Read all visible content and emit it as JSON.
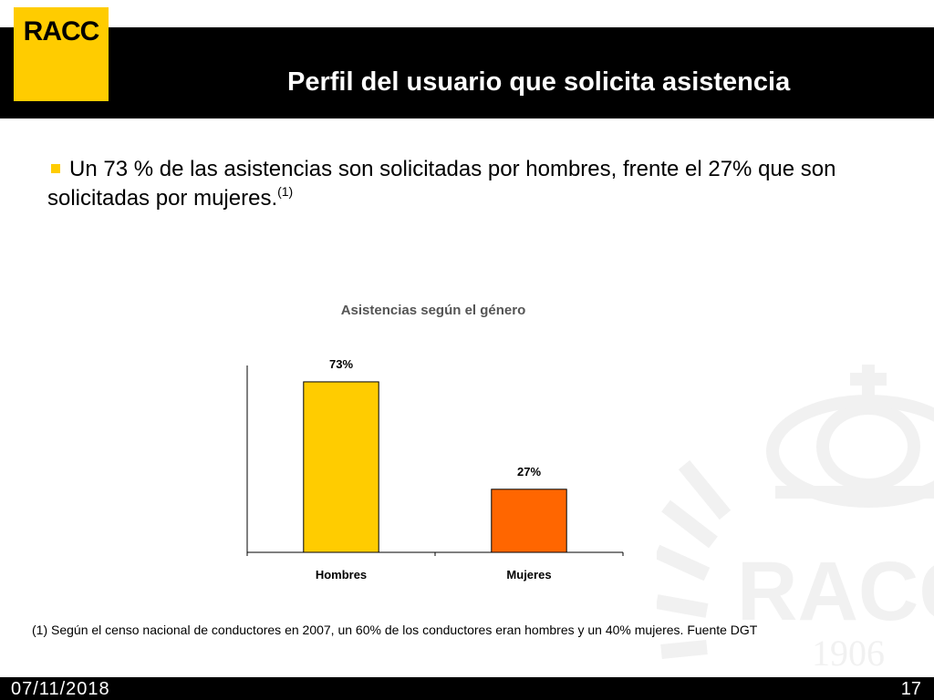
{
  "logo": {
    "text": "RACC"
  },
  "slide": {
    "title": "Perfil del usuario que solicita asistencia",
    "bullet_text": "Un 73 % de las asistencias son solicitadas por hombres, frente el 27% que son solicitadas por mujeres.",
    "bullet_sup": "(1)"
  },
  "chart_data": {
    "type": "bar",
    "title": "Asistencias según el género",
    "categories": [
      "Hombres",
      "Mujeres"
    ],
    "values": [
      73,
      27
    ],
    "data_labels": [
      "73%",
      "27%"
    ],
    "ylim": [
      0,
      80
    ],
    "colors": [
      "#FFCC00",
      "#FF6600"
    ],
    "grid": false,
    "legend": "none"
  },
  "watermark": {
    "text": "RACC",
    "year": "1906"
  },
  "footnote": "(1) Según el censo nacional de conductores en 2007, un 60% de los conductores eran hombres y un 40% mujeres. Fuente DGT",
  "footer": {
    "date": "07/11/2018",
    "page": "17"
  },
  "colors": {
    "brand_yellow": "#FFCC00",
    "header_black": "#000000"
  }
}
